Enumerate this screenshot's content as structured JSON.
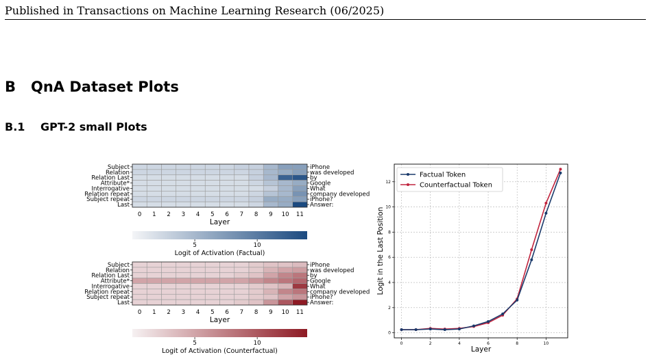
{
  "running_header": "Published in Transactions on Machine Learning Research (06/2025)",
  "section": {
    "number": "B",
    "title": "QnA Dataset Plots"
  },
  "subsection": {
    "number": "B.1",
    "title": "GPT-2 small Plots"
  },
  "colors": {
    "factual_heatmap_high": "#1b4a80",
    "counterfactual_heatmap_high": "#8e1a24",
    "factual_line": "#1a3a6b",
    "counterfactual_line": "#c0243e"
  },
  "chart_data": [
    {
      "type": "heatmap",
      "id": "factual",
      "row_labels_left": [
        "Subject",
        "Relation",
        "Relation Last",
        "Attribute*",
        "Interrogative",
        "Relation repeat",
        "Subject repeat",
        "Last"
      ],
      "row_labels_right": [
        "iPhone",
        "was developed",
        "by",
        "Google",
        "What",
        "company developed",
        "iPhone?",
        "Answer:"
      ],
      "columns": [
        "0",
        "1",
        "2",
        "3",
        "4",
        "5",
        "6",
        "7",
        "8",
        "9",
        "10",
        "11"
      ],
      "xlabel": "Layer",
      "colorbar_label": "Logit of Activation (Factual)",
      "colorbar_ticks": [
        5,
        10
      ],
      "vmin": 0,
      "vmax": 14,
      "values": [
        [
          2.5,
          2.5,
          2.5,
          2.5,
          2.5,
          2.5,
          2.5,
          3,
          3,
          5,
          7,
          7
        ],
        [
          2.5,
          2.5,
          2.5,
          2.5,
          2.5,
          2.5,
          2.5,
          2.5,
          3,
          5,
          6,
          7
        ],
        [
          2,
          2,
          2,
          2,
          2,
          2,
          2,
          2,
          3,
          5,
          12,
          13
        ],
        [
          2,
          2,
          2,
          2,
          2,
          2,
          2,
          2,
          2.5,
          4,
          5,
          6
        ],
        [
          2,
          2,
          2,
          2,
          2,
          2,
          2,
          2,
          2,
          3,
          5,
          7
        ],
        [
          2,
          2,
          2,
          2,
          2,
          2,
          2,
          2,
          2.5,
          4,
          5,
          8
        ],
        [
          2.5,
          2.5,
          2.5,
          2.5,
          2.5,
          2.5,
          2.5,
          2.5,
          3,
          6,
          6,
          7
        ],
        [
          2,
          2,
          2,
          2,
          2,
          2,
          2,
          2,
          2.5,
          5,
          6,
          14
        ]
      ]
    },
    {
      "type": "heatmap",
      "id": "counterfactual",
      "row_labels_left": [
        "Subject",
        "Relation",
        "Relation Last",
        "Attribute*",
        "Interrogative",
        "Relation repeat",
        "Subject repeat",
        "Last"
      ],
      "row_labels_right": [
        "iPhone",
        "was developed",
        "by",
        "Google",
        "What",
        "company developed",
        "iPhone?",
        "Answer:"
      ],
      "columns": [
        "0",
        "1",
        "2",
        "3",
        "4",
        "5",
        "6",
        "7",
        "8",
        "9",
        "10",
        "11"
      ],
      "xlabel": "Layer",
      "colorbar_label": "Logit of Activation (Counterfactual)",
      "colorbar_ticks": [
        5,
        10
      ],
      "vmin": 0,
      "vmax": 14,
      "values": [
        [
          2,
          2,
          2,
          2,
          2,
          2,
          2,
          2,
          2.5,
          3,
          3,
          3.5
        ],
        [
          2,
          2,
          2,
          2,
          2,
          2,
          2,
          2,
          2.5,
          4,
          5,
          5.5
        ],
        [
          2,
          2,
          2,
          2,
          2,
          2,
          2,
          2.5,
          3,
          5,
          7,
          8
        ],
        [
          5,
          5,
          5,
          5,
          5,
          5,
          5,
          5,
          6,
          7,
          8,
          9
        ],
        [
          2,
          2,
          2,
          2,
          2,
          2,
          2,
          2,
          2.5,
          3,
          4,
          12
        ],
        [
          2,
          2,
          2,
          2,
          2,
          2,
          2,
          2,
          2.5,
          4,
          7,
          8
        ],
        [
          2,
          2,
          2,
          2,
          2,
          2,
          2,
          2,
          2.5,
          3,
          5,
          6
        ],
        [
          2,
          2,
          2,
          2,
          2,
          2,
          2,
          2.5,
          3,
          6,
          10,
          14
        ]
      ]
    },
    {
      "type": "line",
      "id": "last-position-logits",
      "xlabel": "Layer",
      "ylabel": "Logit in the Last Position",
      "x": [
        0,
        1,
        2,
        3,
        4,
        5,
        6,
        7,
        8,
        9,
        10,
        11
      ],
      "xlim": [
        -0.5,
        11.5
      ],
      "ylim": [
        -0.4,
        13.4
      ],
      "xticks": [
        0,
        2,
        4,
        6,
        8,
        10
      ],
      "yticks": [
        0,
        2,
        4,
        6,
        8,
        10,
        12
      ],
      "grid": true,
      "legend_position": "top-left",
      "series": [
        {
          "name": "Factual Token",
          "values": [
            0.25,
            0.25,
            0.3,
            0.25,
            0.3,
            0.55,
            0.9,
            1.5,
            2.6,
            5.8,
            9.5,
            12.7
          ]
        },
        {
          "name": "Counterfactual Token",
          "values": [
            0.25,
            0.25,
            0.35,
            0.3,
            0.35,
            0.5,
            0.8,
            1.4,
            2.7,
            6.6,
            10.3,
            13.0
          ]
        }
      ]
    }
  ]
}
